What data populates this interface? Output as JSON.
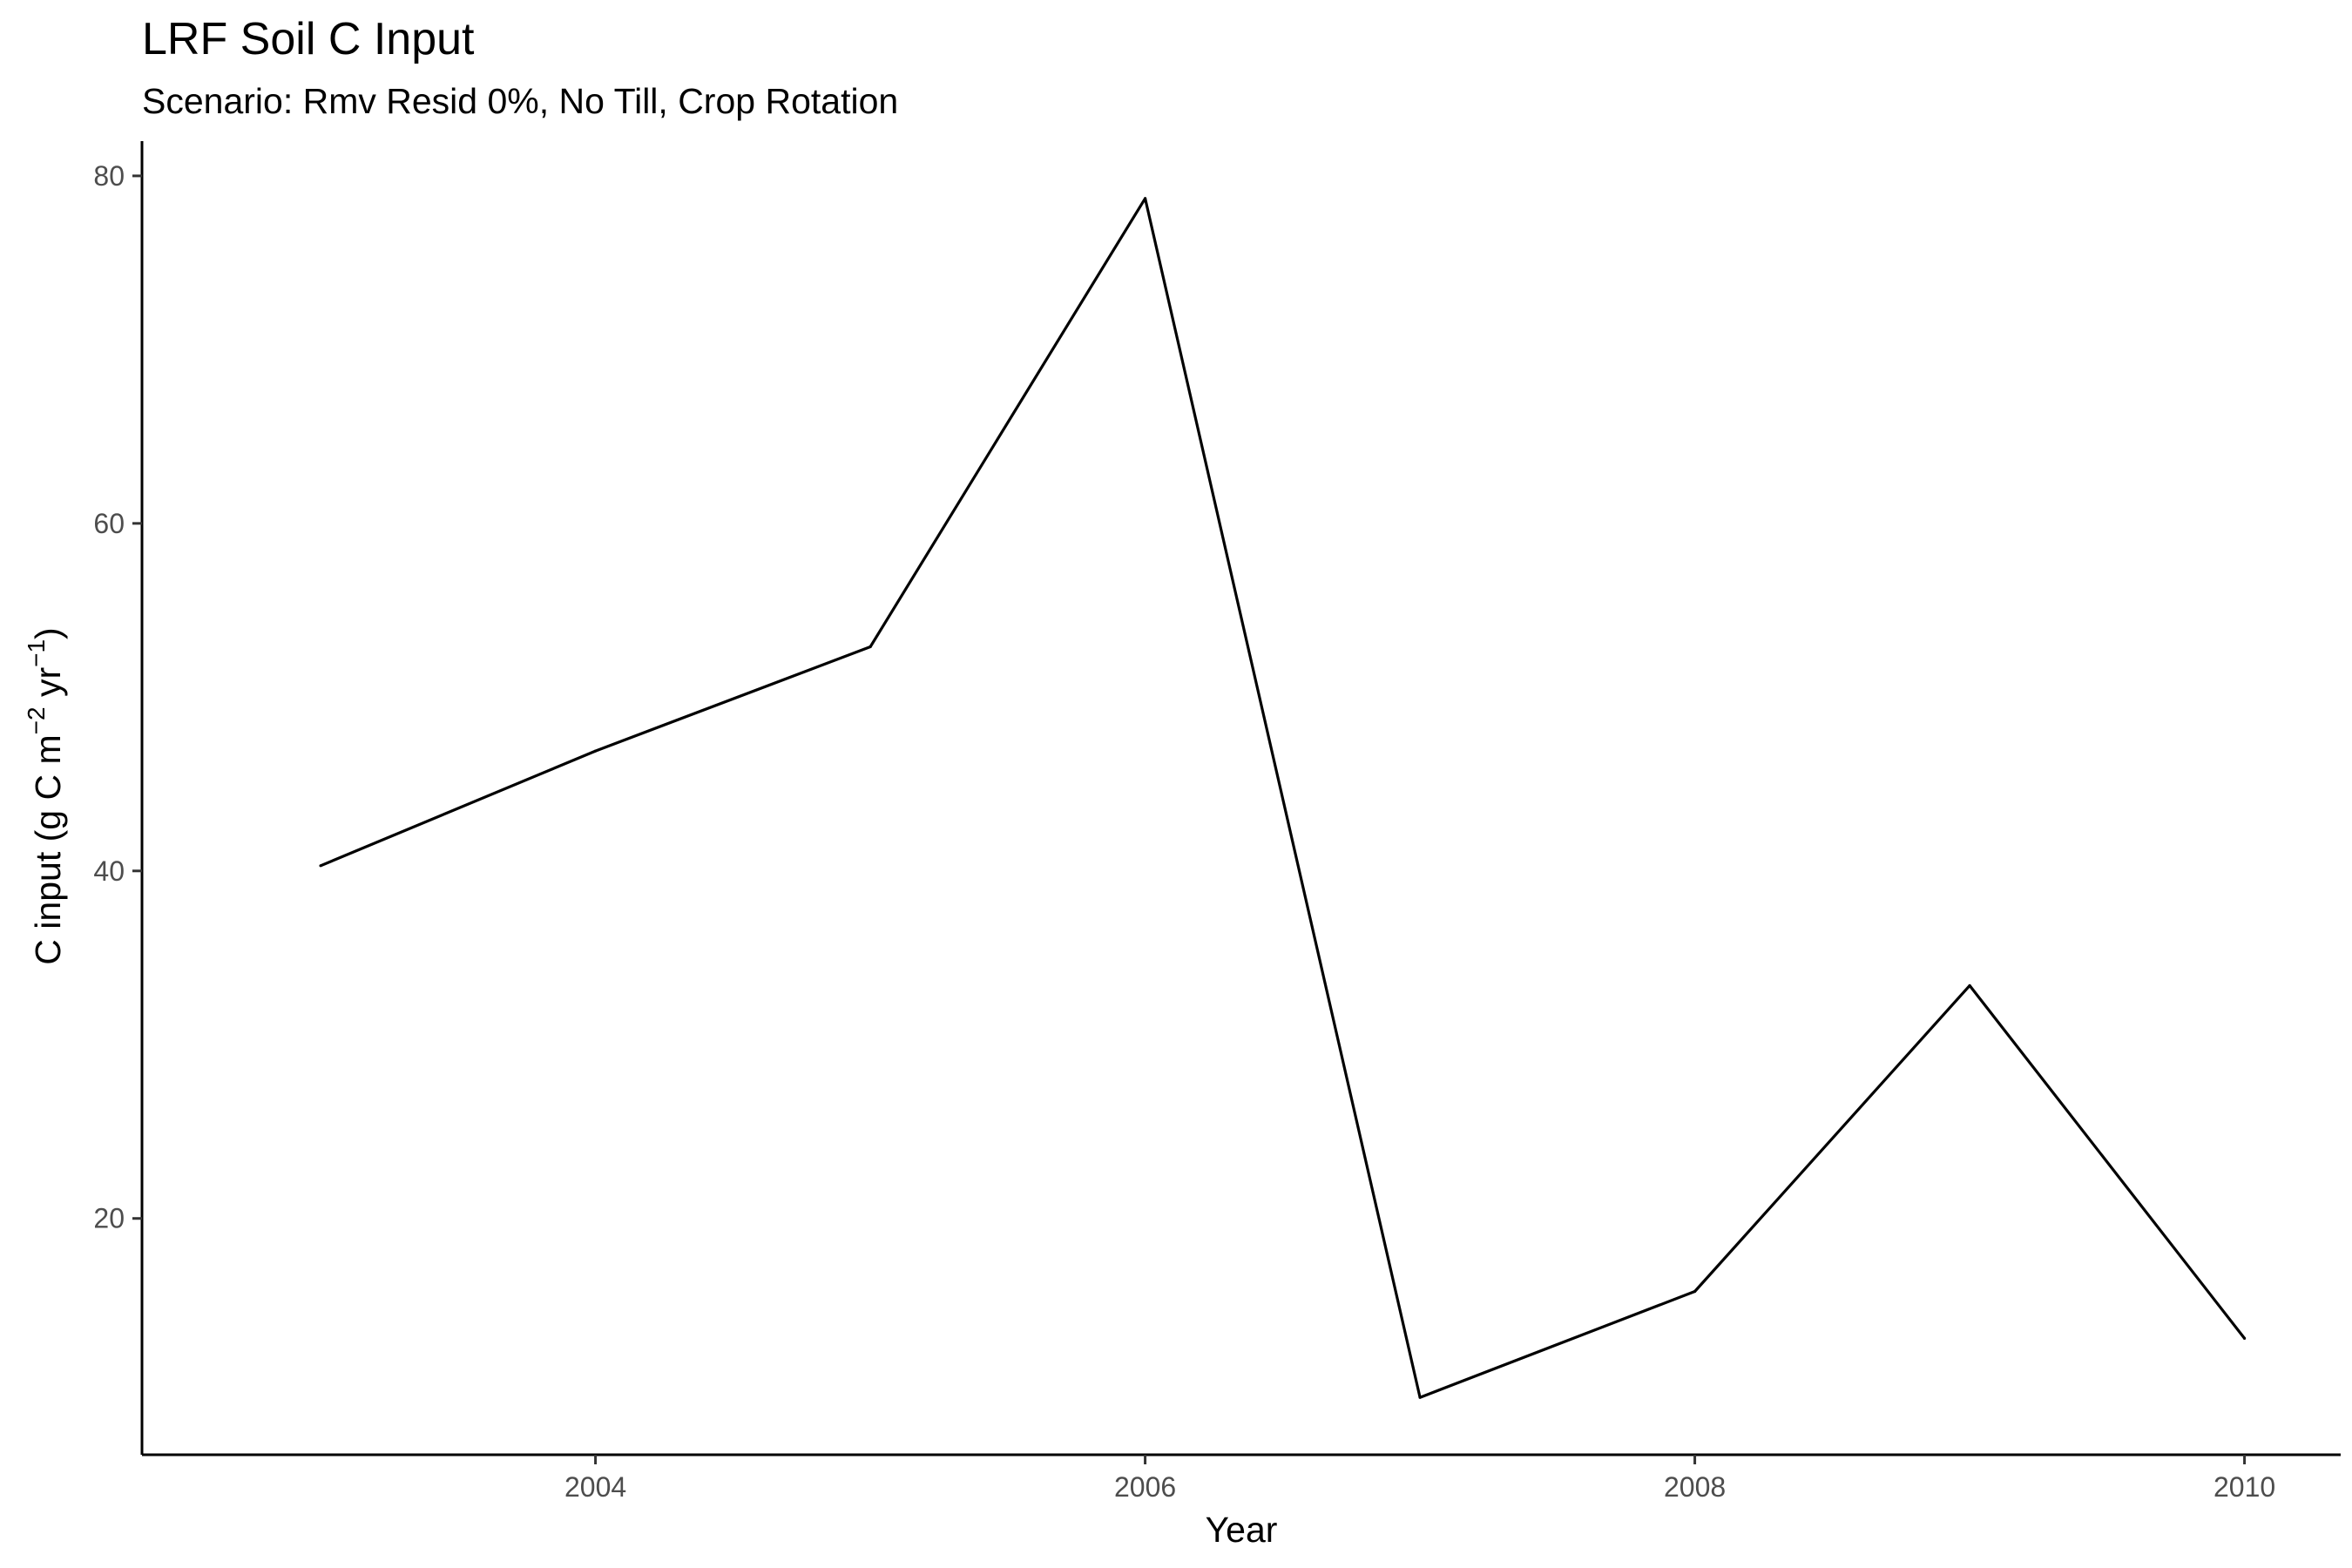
{
  "chart_data": {
    "type": "line",
    "title": "LRF Soil C Input",
    "subtitle": "Scenario: Rmv Resid 0%, No Till, Crop Rotation",
    "xlabel": "Year",
    "ylabel": {
      "prefix": "C input (g C m",
      "exp1": "−2",
      "middle": " yr",
      "exp2": "−1",
      "suffix": ")"
    },
    "x_ticks": [
      2004,
      2006,
      2008,
      2010
    ],
    "y_ticks": [
      20,
      40,
      60,
      80
    ],
    "xlim": [
      2002.35,
      2010.35
    ],
    "ylim": [
      6.4,
      82.0
    ],
    "grid": false,
    "legend": "none",
    "line_color": "#000000",
    "series": [
      {
        "x": [
          2003,
          2004,
          2005,
          2006,
          2007,
          2008,
          2009,
          2010
        ],
        "values": [
          40.3,
          46.9,
          52.9,
          78.7,
          9.7,
          15.8,
          33.4,
          13.1
        ]
      }
    ]
  }
}
